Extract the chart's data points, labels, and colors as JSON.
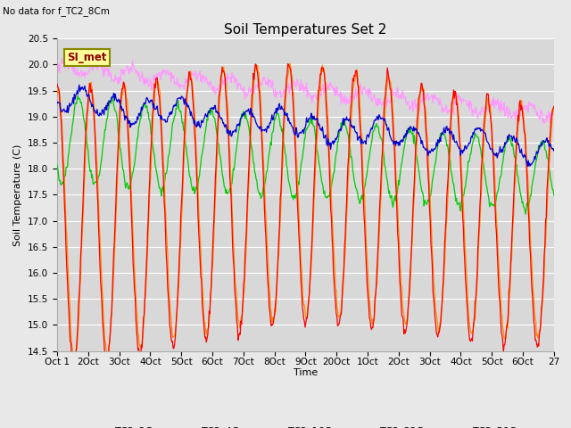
{
  "title": "Soil Temperatures Set 2",
  "subtitle": "No data for f_TC2_8Cm",
  "ylabel": "Soil Temperature (C)",
  "xlabel": "Time",
  "annotation": "SI_met",
  "ylim": [
    14.5,
    20.5
  ],
  "yticks": [
    14.5,
    15.0,
    15.5,
    16.0,
    16.5,
    17.0,
    17.5,
    18.0,
    18.5,
    19.0,
    19.5,
    20.0,
    20.5
  ],
  "x_tick_labels": [
    "Oct 1",
    "2Oct",
    "3Oct",
    "4Oct",
    "5Oct",
    "6Oct",
    "7Oct",
    "8Oct",
    "9Oct",
    "20Oct",
    "1Oct",
    "2Oct",
    "3Oct",
    "4Oct",
    "5Oct",
    "6Oct",
    "27"
  ],
  "series_colors": {
    "TC2_2Cm": "#ff0000",
    "TC2_4Cm": "#ff8c00",
    "TC2_16Cm": "#00cc00",
    "TC2_32Cm": "#0000cc",
    "TC2_50Cm": "#ff99ff"
  },
  "bg_color": "#e8e8e8",
  "plot_bg_color": "#d8d8d8",
  "grid_color": "#ffffff",
  "title_fontsize": 11,
  "label_fontsize": 8,
  "tick_fontsize": 7.5
}
